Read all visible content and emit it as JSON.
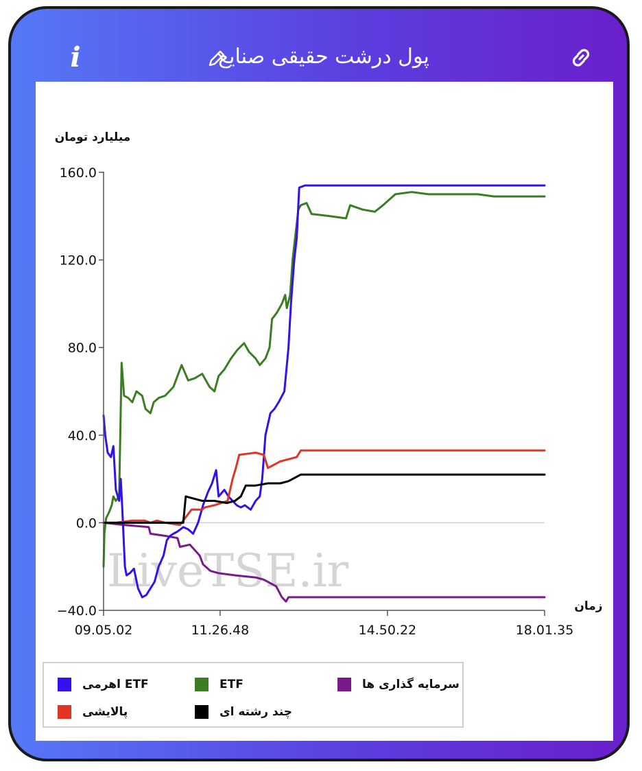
{
  "header": {
    "title": "پول درشت حقیقی صنایع"
  },
  "icons": {
    "info": "info-icon",
    "edit": "pencil-icon",
    "link": "link-icon"
  },
  "colors": {
    "frame_start": "#5579f7",
    "frame_end": "#6a1fcc"
  },
  "chart_data": {
    "type": "line",
    "ylabel": "میلیارد تومان",
    "xlabel": "زمان",
    "ylim": [
      -40,
      160
    ],
    "yticks": [
      -40,
      0,
      40,
      80,
      120,
      160
    ],
    "ytick_labels": [
      "−40.0",
      "0.0",
      "40.0",
      "80.0",
      "120.0",
      "160.0"
    ],
    "xlim": [
      "09:05:02",
      "18:01:35"
    ],
    "xticks": [
      "09:05:02",
      "11:26:48",
      "14:50:22",
      "18:01:35"
    ],
    "xtick_labels": [
      "09.05.02",
      "11.26.48",
      "14.50.22",
      "18.01.35"
    ],
    "grid": "y-zero-line",
    "legend_position": "bottom-left",
    "watermark": "LiveTSE.ir",
    "series": [
      {
        "name": "سرمایه گذاری ها",
        "color": "#7a1a8a",
        "points": [
          [
            "09:05:02",
            0
          ],
          [
            "09:30:00",
            -1
          ],
          [
            "10:00:00",
            -2
          ],
          [
            "10:02:00",
            -5
          ],
          [
            "10:20:00",
            -6
          ],
          [
            "10:35:00",
            -7
          ],
          [
            "10:38:00",
            -11
          ],
          [
            "10:50:00",
            -10
          ],
          [
            "11:02:00",
            -15
          ],
          [
            "11:06:00",
            -19
          ],
          [
            "11:15:00",
            -22
          ],
          [
            "11:25:00",
            -23
          ],
          [
            "11:45:00",
            -24
          ],
          [
            "12:10:00",
            -25
          ],
          [
            "12:20:00",
            -26
          ],
          [
            "12:35:00",
            -29
          ],
          [
            "12:42:00",
            -34
          ],
          [
            "12:47:00",
            -36
          ],
          [
            "12:50:00",
            -34
          ],
          [
            "13:00:00",
            -34
          ],
          [
            "18:01:35",
            -34
          ]
        ]
      },
      {
        "name": "ETF",
        "color": "#3a7d22",
        "points": [
          [
            "09:05:02",
            -20
          ],
          [
            "09:06:00",
            -5
          ],
          [
            "09:08:00",
            2
          ],
          [
            "09:12:00",
            5
          ],
          [
            "09:15:00",
            8
          ],
          [
            "09:17:00",
            12
          ],
          [
            "09:20:00",
            10
          ],
          [
            "09:24:00",
            12
          ],
          [
            "09:27:00",
            73
          ],
          [
            "09:30:00",
            58
          ],
          [
            "09:35:00",
            57
          ],
          [
            "09:40:00",
            55
          ],
          [
            "09:45:00",
            60
          ],
          [
            "09:52:00",
            58
          ],
          [
            "09:56:00",
            52
          ],
          [
            "10:02:00",
            50
          ],
          [
            "10:06:00",
            55
          ],
          [
            "10:12:00",
            57
          ],
          [
            "10:20:00",
            58
          ],
          [
            "10:30:00",
            62
          ],
          [
            "10:40:00",
            72
          ],
          [
            "10:48:00",
            65
          ],
          [
            "10:56:00",
            66
          ],
          [
            "11:05:00",
            68
          ],
          [
            "11:14:00",
            62
          ],
          [
            "11:20:00",
            60
          ],
          [
            "11:25:00",
            67
          ],
          [
            "11:32:00",
            70
          ],
          [
            "11:40:00",
            75
          ],
          [
            "11:48:00",
            79
          ],
          [
            "11:56:00",
            82
          ],
          [
            "12:02:00",
            78
          ],
          [
            "12:10:00",
            75
          ],
          [
            "12:15:00",
            72
          ],
          [
            "12:22:00",
            75
          ],
          [
            "12:27:00",
            80
          ],
          [
            "12:30:00",
            93
          ],
          [
            "12:36:00",
            96
          ],
          [
            "12:42:00",
            100
          ],
          [
            "12:46:00",
            104
          ],
          [
            "12:48:00",
            98
          ],
          [
            "12:52:00",
            104
          ],
          [
            "12:55:00",
            120
          ],
          [
            "12:58:00",
            130
          ],
          [
            "13:02:00",
            143
          ],
          [
            "13:05:00",
            145
          ],
          [
            "13:12:00",
            146
          ],
          [
            "13:18:00",
            141
          ],
          [
            "13:40:00",
            140
          ],
          [
            "14:00:00",
            139
          ],
          [
            "14:05:00",
            145
          ],
          [
            "14:20:00",
            143
          ],
          [
            "14:35:00",
            142
          ],
          [
            "14:45:00",
            145
          ],
          [
            "15:00:00",
            150
          ],
          [
            "15:20:00",
            151
          ],
          [
            "15:40:00",
            150
          ],
          [
            "16:00:00",
            150
          ],
          [
            "16:40:00",
            150
          ],
          [
            "17:00:00",
            149
          ],
          [
            "18:01:35",
            149
          ]
        ]
      },
      {
        "name": "ETF اهرمی",
        "color": "#3311ee",
        "points": [
          [
            "09:05:02",
            49
          ],
          [
            "09:07:00",
            40
          ],
          [
            "09:10:00",
            32
          ],
          [
            "09:14:00",
            30
          ],
          [
            "09:17:00",
            35
          ],
          [
            "09:20:00",
            15
          ],
          [
            "09:24:00",
            10
          ],
          [
            "09:26:00",
            20
          ],
          [
            "09:28:00",
            5
          ],
          [
            "09:31:00",
            -20
          ],
          [
            "09:33:00",
            -24
          ],
          [
            "09:37:00",
            -23
          ],
          [
            "09:42:00",
            -21
          ],
          [
            "09:47:00",
            -30
          ],
          [
            "09:52:00",
            -34
          ],
          [
            "09:57:00",
            -33
          ],
          [
            "10:02:00",
            -30
          ],
          [
            "10:07:00",
            -27
          ],
          [
            "10:12:00",
            -20
          ],
          [
            "10:18:00",
            -15
          ],
          [
            "10:22:00",
            -8
          ],
          [
            "10:26:00",
            -6
          ],
          [
            "10:30:00",
            -5
          ],
          [
            "10:35:00",
            -4
          ],
          [
            "10:42:00",
            -2
          ],
          [
            "10:48:00",
            -3
          ],
          [
            "10:54:00",
            -5
          ],
          [
            "11:00:00",
            0
          ],
          [
            "11:06:00",
            8
          ],
          [
            "11:12:00",
            14
          ],
          [
            "11:17:00",
            18
          ],
          [
            "11:22:00",
            24
          ],
          [
            "11:25:00",
            12
          ],
          [
            "11:32:00",
            15
          ],
          [
            "11:37:00",
            12
          ],
          [
            "11:42:00",
            10
          ],
          [
            "11:47:00",
            8
          ],
          [
            "11:52:00",
            7
          ],
          [
            "11:57:00",
            8
          ],
          [
            "12:04:00",
            6
          ],
          [
            "12:10:00",
            10
          ],
          [
            "12:15:00",
            12
          ],
          [
            "12:18:00",
            20
          ],
          [
            "12:22:00",
            40
          ],
          [
            "12:25:00",
            45
          ],
          [
            "12:28:00",
            50
          ],
          [
            "12:33:00",
            52
          ],
          [
            "12:38:00",
            55
          ],
          [
            "12:45:00",
            60
          ],
          [
            "12:50:00",
            80
          ],
          [
            "12:53:00",
            100
          ],
          [
            "12:57:00",
            120
          ],
          [
            "13:00:00",
            130
          ],
          [
            "13:03:00",
            153
          ],
          [
            "13:10:00",
            154
          ],
          [
            "18:01:35",
            154
          ]
        ]
      },
      {
        "name": "پالایشی",
        "color": "#e03424",
        "points": [
          [
            "09:05:02",
            0
          ],
          [
            "09:20:00",
            0
          ],
          [
            "09:40:00",
            1
          ],
          [
            "09:55:00",
            1
          ],
          [
            "10:02:00",
            0
          ],
          [
            "10:10:00",
            1
          ],
          [
            "10:20:00",
            0
          ],
          [
            "10:38:00",
            -1
          ],
          [
            "10:52:00",
            6
          ],
          [
            "11:05:00",
            6
          ],
          [
            "11:08:00",
            7
          ],
          [
            "11:20:00",
            8
          ],
          [
            "11:36:00",
            10
          ],
          [
            "11:42:00",
            20
          ],
          [
            "11:46:00",
            25
          ],
          [
            "11:50:00",
            31
          ],
          [
            "12:10:00",
            32
          ],
          [
            "12:20:00",
            31
          ],
          [
            "12:25:00",
            25
          ],
          [
            "12:30:00",
            26
          ],
          [
            "12:40:00",
            28
          ],
          [
            "12:50:00",
            29
          ],
          [
            "13:00:00",
            30
          ],
          [
            "13:05:00",
            33
          ],
          [
            "18:01:35",
            33
          ]
        ]
      },
      {
        "name": "چند رشته ای",
        "color": "#000000",
        "points": [
          [
            "09:05:02",
            0
          ],
          [
            "09:30:00",
            0
          ],
          [
            "10:00:00",
            0
          ],
          [
            "10:30:00",
            0
          ],
          [
            "10:42:00",
            0
          ],
          [
            "10:45:00",
            12
          ],
          [
            "10:55:00",
            11
          ],
          [
            "11:05:00",
            10
          ],
          [
            "11:20:00",
            10
          ],
          [
            "11:35:00",
            9
          ],
          [
            "11:45:00",
            10
          ],
          [
            "11:52:00",
            12
          ],
          [
            "11:58:00",
            17
          ],
          [
            "12:10:00",
            17
          ],
          [
            "12:25:00",
            18
          ],
          [
            "12:40:00",
            18
          ],
          [
            "12:50:00",
            19
          ],
          [
            "13:00:00",
            21
          ],
          [
            "13:05:00",
            22
          ],
          [
            "18:01:35",
            22
          ]
        ]
      }
    ]
  }
}
